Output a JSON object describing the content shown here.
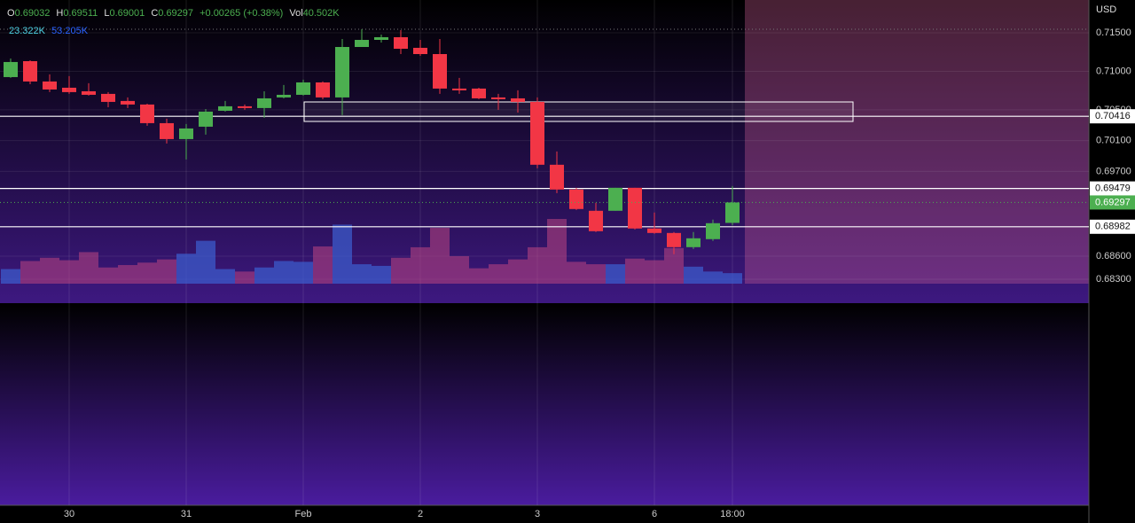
{
  "chart_data": {
    "type": "candlestick",
    "legend": {
      "open_label": "O",
      "high_label": "H",
      "low_label": "L",
      "close_label": "C",
      "change": "+0.00265 (+0.38%)",
      "volume_title": "Vol",
      "volume_label": "40.502K",
      "ma_fast": "23.322K",
      "ma_slow": "53.205K"
    },
    "currency": "USD",
    "categories": [
      null,
      null,
      null,
      "30",
      null,
      null,
      null,
      null,
      null,
      "31",
      null,
      null,
      null,
      null,
      null,
      "Feb",
      null,
      null,
      null,
      null,
      null,
      "2",
      null,
      null,
      null,
      null,
      null,
      "3",
      null,
      null,
      null,
      null,
      null,
      "6",
      null,
      null,
      null,
      "18:00"
    ],
    "open": [
      0.70925,
      0.71132,
      0.70868,
      0.70787,
      0.70741,
      0.70707,
      0.70615,
      0.70569,
      0.70327,
      0.7012,
      0.70281,
      0.70488,
      0.70546,
      0.70523,
      0.70661,
      0.70695,
      0.70856,
      0.70661,
      0.71316,
      0.71408,
      0.71443,
      0.71305,
      0.71224,
      0.70776,
      0.70776,
      0.70661,
      0.70649,
      0.70603,
      0.69787,
      0.69465,
      0.69189,
      0.69189,
      0.69488,
      0.68959,
      0.68901,
      0.68717,
      0.68821,
      0.69032
    ],
    "high": [
      0.71167,
      0.71144,
      0.7096,
      0.70937,
      0.70845,
      0.7073,
      0.70661,
      0.7058,
      0.70385,
      0.70316,
      0.70511,
      0.70615,
      0.70569,
      0.70741,
      0.70822,
      0.70891,
      0.70868,
      0.7142,
      0.71546,
      0.71477,
      0.71535,
      0.71408,
      0.7142,
      0.70914,
      0.70787,
      0.70707,
      0.70753,
      0.70661,
      0.69959,
      0.69488,
      0.69292,
      0.69488,
      0.69488,
      0.69166,
      0.68913,
      0.68913,
      0.69074,
      0.69511
    ],
    "low": [
      0.70914,
      0.70833,
      0.7073,
      0.70707,
      0.70684,
      0.70534,
      0.70523,
      0.70293,
      0.70063,
      0.69856,
      0.70178,
      0.70477,
      0.705,
      0.70396,
      0.70649,
      0.70684,
      0.70638,
      0.70431,
      0.71316,
      0.71374,
      0.71224,
      0.71201,
      0.70707,
      0.70707,
      0.70638,
      0.705,
      0.70465,
      0.69741,
      0.69419,
      0.692,
      0.68913,
      0.69189,
      0.68947,
      0.6889,
      0.68625,
      0.68694,
      0.68798,
      0.69001
    ],
    "close": [
      0.71121,
      0.70868,
      0.70764,
      0.7073,
      0.70695,
      0.70603,
      0.70569,
      0.70327,
      0.7012,
      0.70258,
      0.70477,
      0.70546,
      0.70523,
      0.70649,
      0.70695,
      0.70856,
      0.70661,
      0.71316,
      0.71408,
      0.71443,
      0.71293,
      0.71224,
      0.70776,
      0.70753,
      0.70649,
      0.70638,
      0.70603,
      0.69787,
      0.69465,
      0.69212,
      0.68924,
      0.69488,
      0.68959,
      0.68901,
      0.68717,
      0.68832,
      0.69028,
      0.69297
    ],
    "volume": [
      56.1,
      87.2,
      99.7,
      90.3,
      121.5,
      62.3,
      71.6,
      81.0,
      93.4,
      115.2,
      165.1,
      56.1,
      46.7,
      62.3,
      87.2,
      84.1,
      143.3,
      227.4,
      74.8,
      68.5,
      99.7,
      140.2,
      214.9,
      105.9,
      59.2,
      74.8,
      93.4,
      140.2,
      249.2,
      84.1,
      74.8,
      74.8,
      96.6,
      90.3,
      137.1,
      65.4,
      46.7,
      40.502
    ],
    "up_color": "#4caf50",
    "down_color": "#f23645",
    "ylim": [
      0.68243,
      0.71926
    ],
    "yticks": [
      {
        "value": 0.715,
        "label": "0.71500"
      },
      {
        "value": 0.71,
        "label": "0.71000"
      },
      {
        "value": 0.705,
        "label": "0.70500"
      },
      {
        "value": 0.701,
        "label": "0.70100"
      },
      {
        "value": 0.697,
        "label": "0.69700"
      },
      {
        "value": 0.686,
        "label": "0.68600"
      },
      {
        "value": 0.683,
        "label": "0.68300"
      }
    ],
    "levels": [
      0.70416,
      0.69479,
      0.68982
    ],
    "grid": true
  }
}
